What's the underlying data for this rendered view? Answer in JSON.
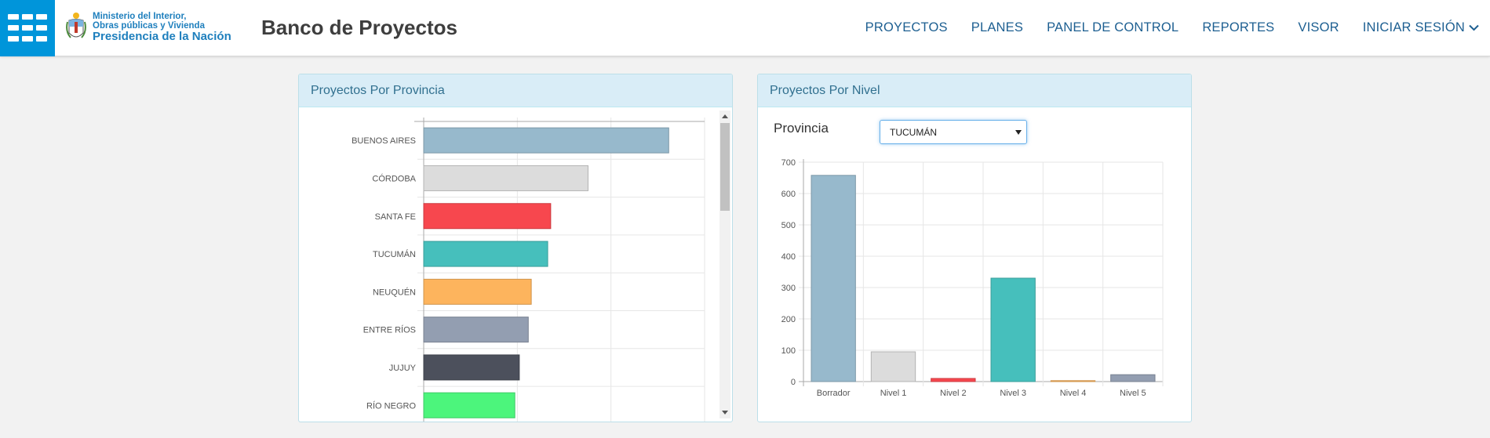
{
  "header": {
    "ministry_line1": "Ministerio del Interior,",
    "ministry_line2": "Obras públicas y Vivienda",
    "presidencia": "Presidencia de la Nación",
    "app_title": "Banco de Proyectos",
    "nav": [
      {
        "label": "PROYECTOS"
      },
      {
        "label": "PLANES"
      },
      {
        "label": "PANEL DE CONTROL"
      },
      {
        "label": "REPORTES"
      },
      {
        "label": "VISOR"
      },
      {
        "label": "INICIAR SESIÓN"
      }
    ],
    "brand_color": "#0095da"
  },
  "panel_provincia": {
    "title": "Proyectos Por Provincia"
  },
  "panel_nivel": {
    "title": "Proyectos Por Nivel",
    "provincia_label": "Provincia",
    "selected_provincia": "TUCUMÁN"
  },
  "chart_data": [
    {
      "type": "bar",
      "orientation": "horizontal",
      "categories": [
        "BUENOS AIRES",
        "CÓRDOBA",
        "SANTA FE",
        "TUCUMÁN",
        "NEUQUÉN",
        "ENTRE RÍOS",
        "JUJUY",
        "RÍO NEGRO"
      ],
      "values": [
        82,
        55,
        42.5,
        41.5,
        36,
        35,
        32,
        30.5
      ],
      "colors": [
        "#97b9cc",
        "#dcdcdc",
        "#f7474e",
        "#46bfbc",
        "#fdb45d",
        "#939eb1",
        "#4c505c",
        "#4cf57c"
      ],
      "xlim": [
        0,
        94
      ],
      "grid": true
    },
    {
      "type": "bar",
      "categories": [
        "Borrador",
        "Nivel 1",
        "Nivel 2",
        "Nivel 3",
        "Nivel 4",
        "Nivel 5"
      ],
      "values": [
        658,
        95,
        10,
        330,
        3,
        22
      ],
      "colors": [
        "#97b9cc",
        "#dcdcdc",
        "#f7474e",
        "#46bfbc",
        "#fdb45d",
        "#939eb1"
      ],
      "ylim": [
        0,
        700
      ],
      "yticks": [
        0,
        100,
        200,
        300,
        400,
        500,
        600,
        700
      ],
      "grid": true
    }
  ]
}
